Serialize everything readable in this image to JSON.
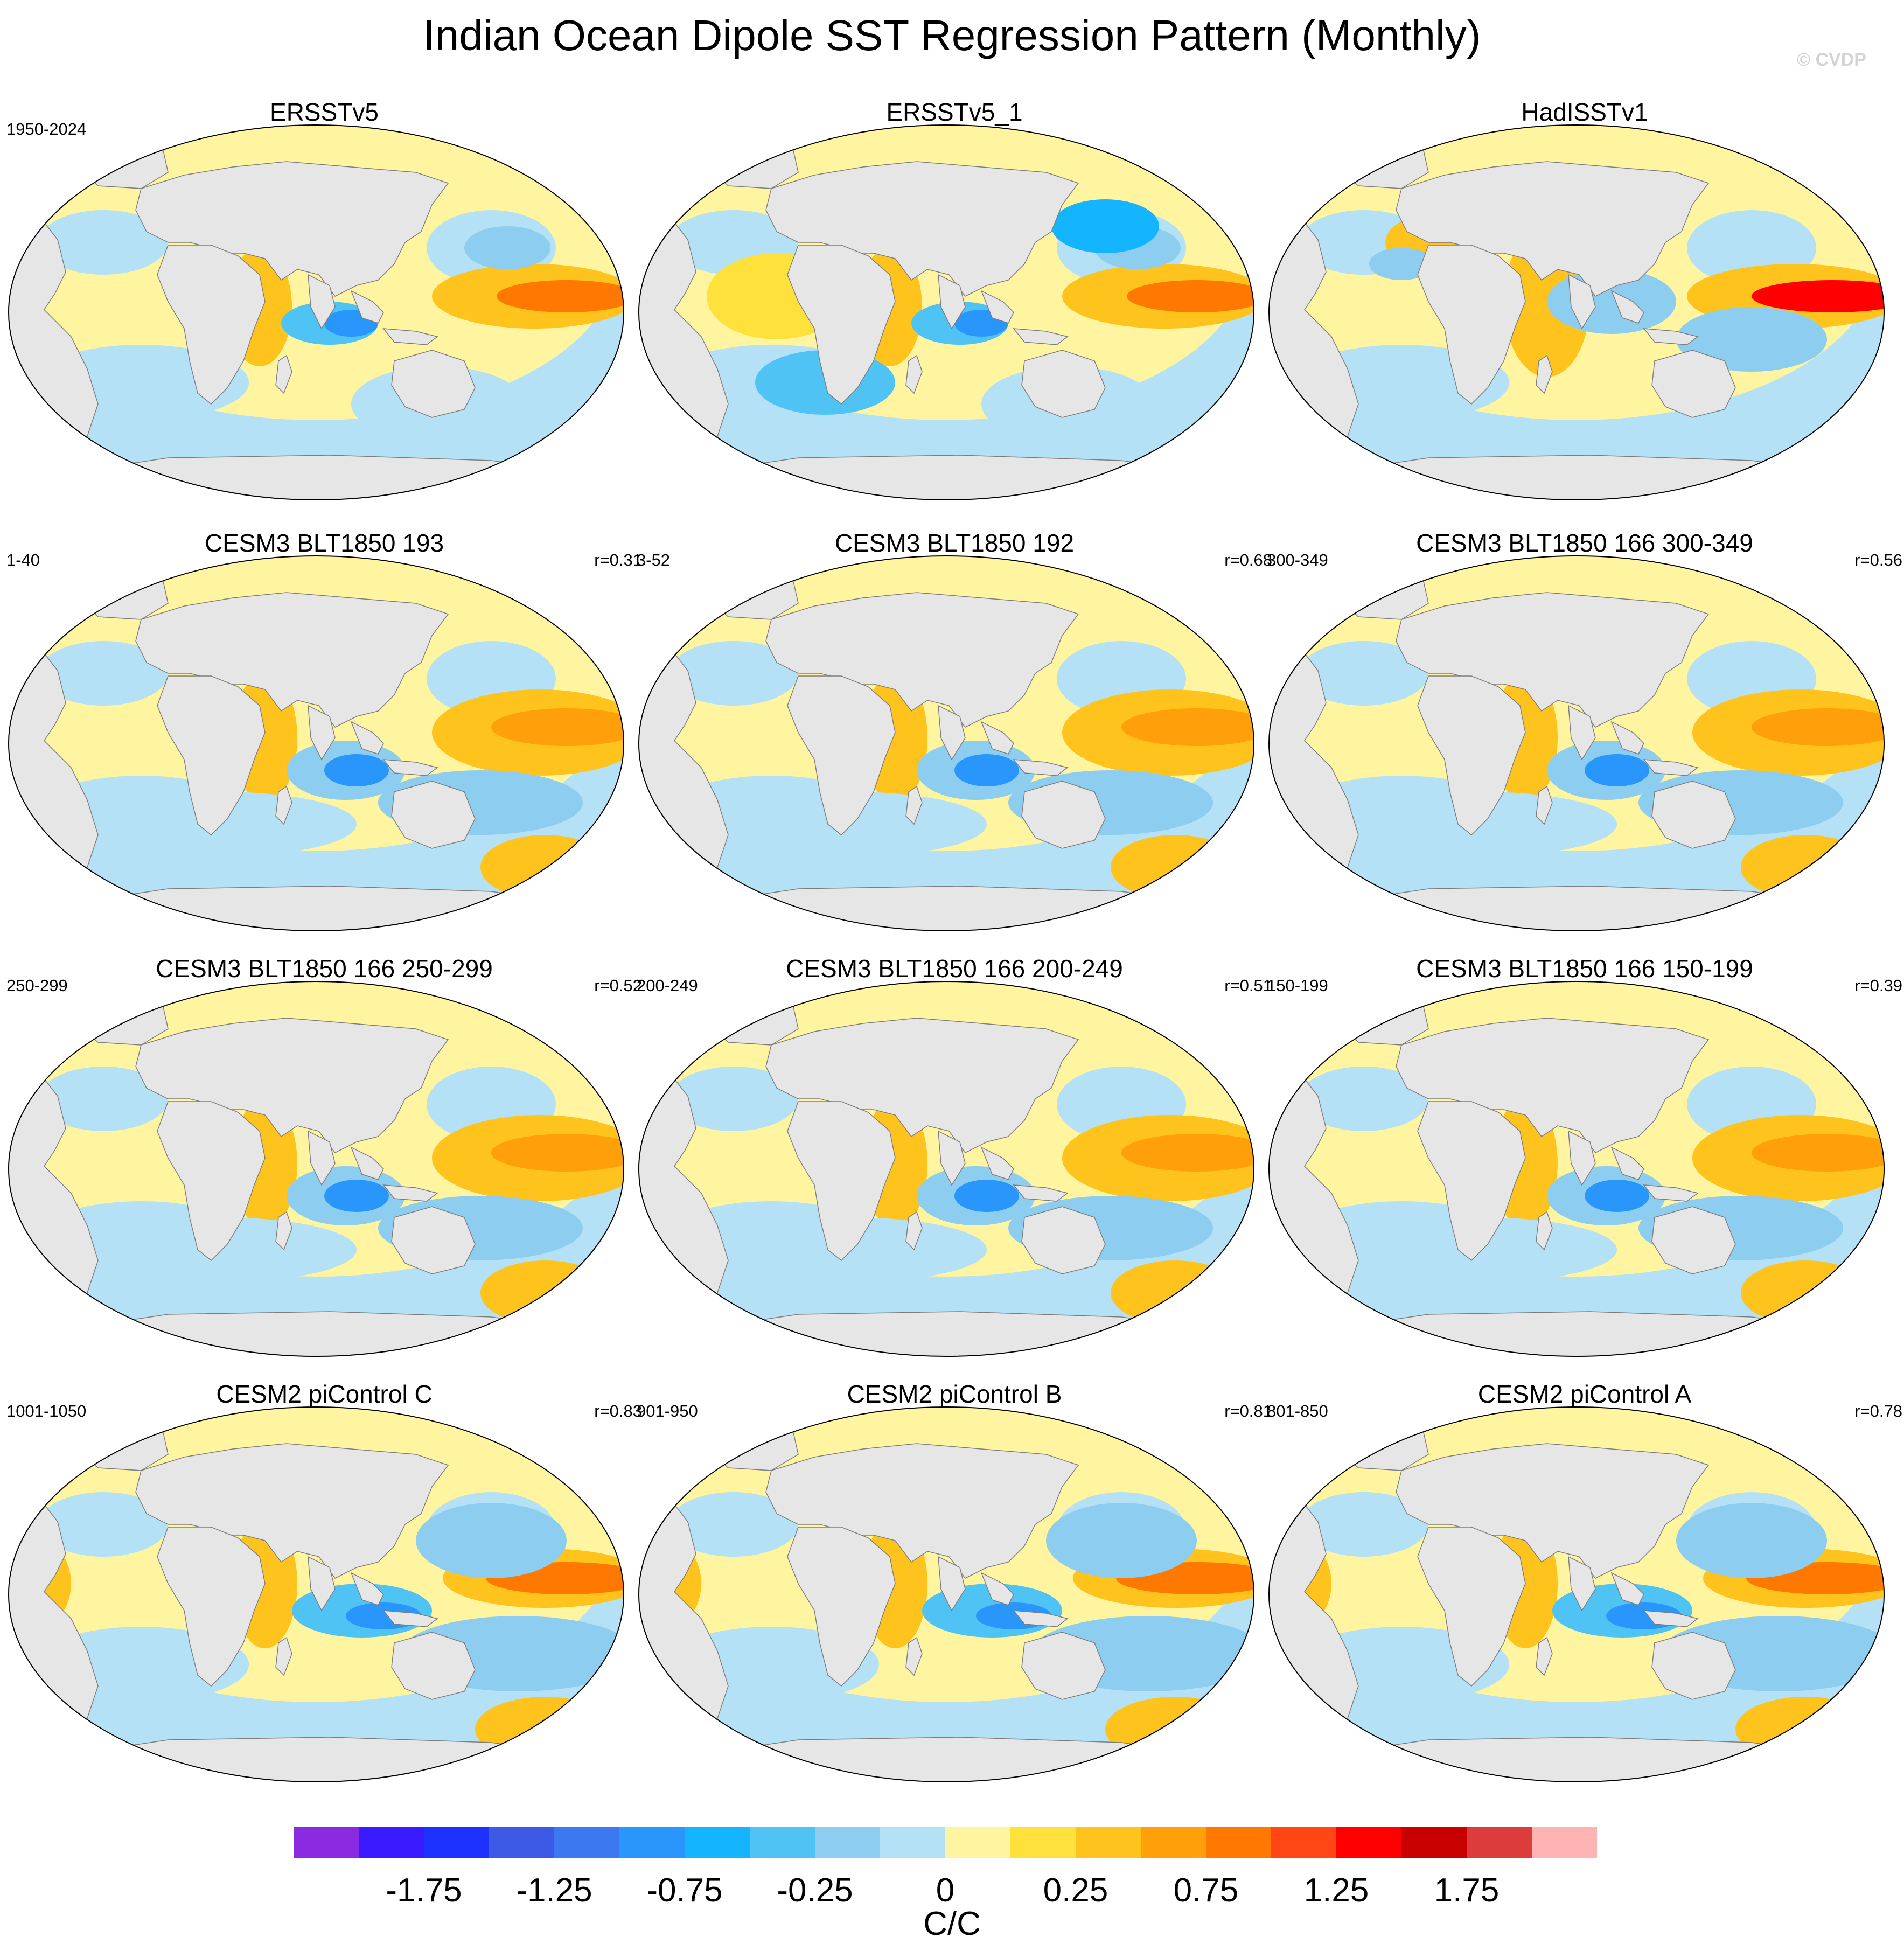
{
  "title": "Indian Ocean Dipole SST Regression Pattern (Monthly)",
  "watermark": "© CVDP",
  "panels": [
    {
      "title": "ERSSTv5",
      "left": "1950-2024",
      "right": "",
      "pattern": "obs1"
    },
    {
      "title": "ERSSTv5_1",
      "left": "",
      "right": "",
      "pattern": "obs2"
    },
    {
      "title": "HadISSTv1",
      "left": "",
      "right": "",
      "pattern": "obs3"
    },
    {
      "title": "CESM3 BLT1850 193",
      "left": "1-40",
      "right": "r=0.31",
      "pattern": "m1"
    },
    {
      "title": "CESM3 BLT1850 192",
      "left": "3-52",
      "right": "r=0.68",
      "pattern": "m2"
    },
    {
      "title": "CESM3 BLT1850 166 300-349",
      "left": "300-349",
      "right": "r=0.56",
      "pattern": "m3"
    },
    {
      "title": "CESM3 BLT1850 166 250-299",
      "left": "250-299",
      "right": "r=0.52",
      "pattern": "m4"
    },
    {
      "title": "CESM3 BLT1850 166 200-249",
      "left": "200-249",
      "right": "r=0.51",
      "pattern": "m5"
    },
    {
      "title": "CESM3 BLT1850 166 150-199",
      "left": "150-199",
      "right": "r=0.39",
      "pattern": "m6"
    },
    {
      "title": "CESM2 piControl C",
      "left": "1001-1050",
      "right": "r=0.83",
      "pattern": "c1"
    },
    {
      "title": "CESM2 piControl B",
      "left": "901-950",
      "right": "r=0.81",
      "pattern": "c2"
    },
    {
      "title": "CESM2 piControl A",
      "left": "801-850",
      "right": "r=0.78",
      "pattern": "c3"
    }
  ],
  "colorbar": {
    "units": "C/C",
    "colors": [
      "#8a2be2",
      "#3a1aff",
      "#1e32ff",
      "#3c5ae6",
      "#3c78f0",
      "#2896fa",
      "#14b4ff",
      "#50c3f5",
      "#8ccdf0",
      "#b4e1f5",
      "#fff5a0",
      "#ffe13c",
      "#ffc31e",
      "#ffa00a",
      "#ff7800",
      "#ff4614",
      "#ff0000",
      "#c80000",
      "#dc3c3c",
      "#ffb4b4"
    ],
    "tick_labels": [
      "-1.75",
      "-1.25",
      "-0.75",
      "-0.25",
      "0",
      "0.25",
      "0.75",
      "1.25",
      "1.75"
    ]
  },
  "land_color": "#e6e6e6",
  "coast_color": "#7d7d7d"
}
